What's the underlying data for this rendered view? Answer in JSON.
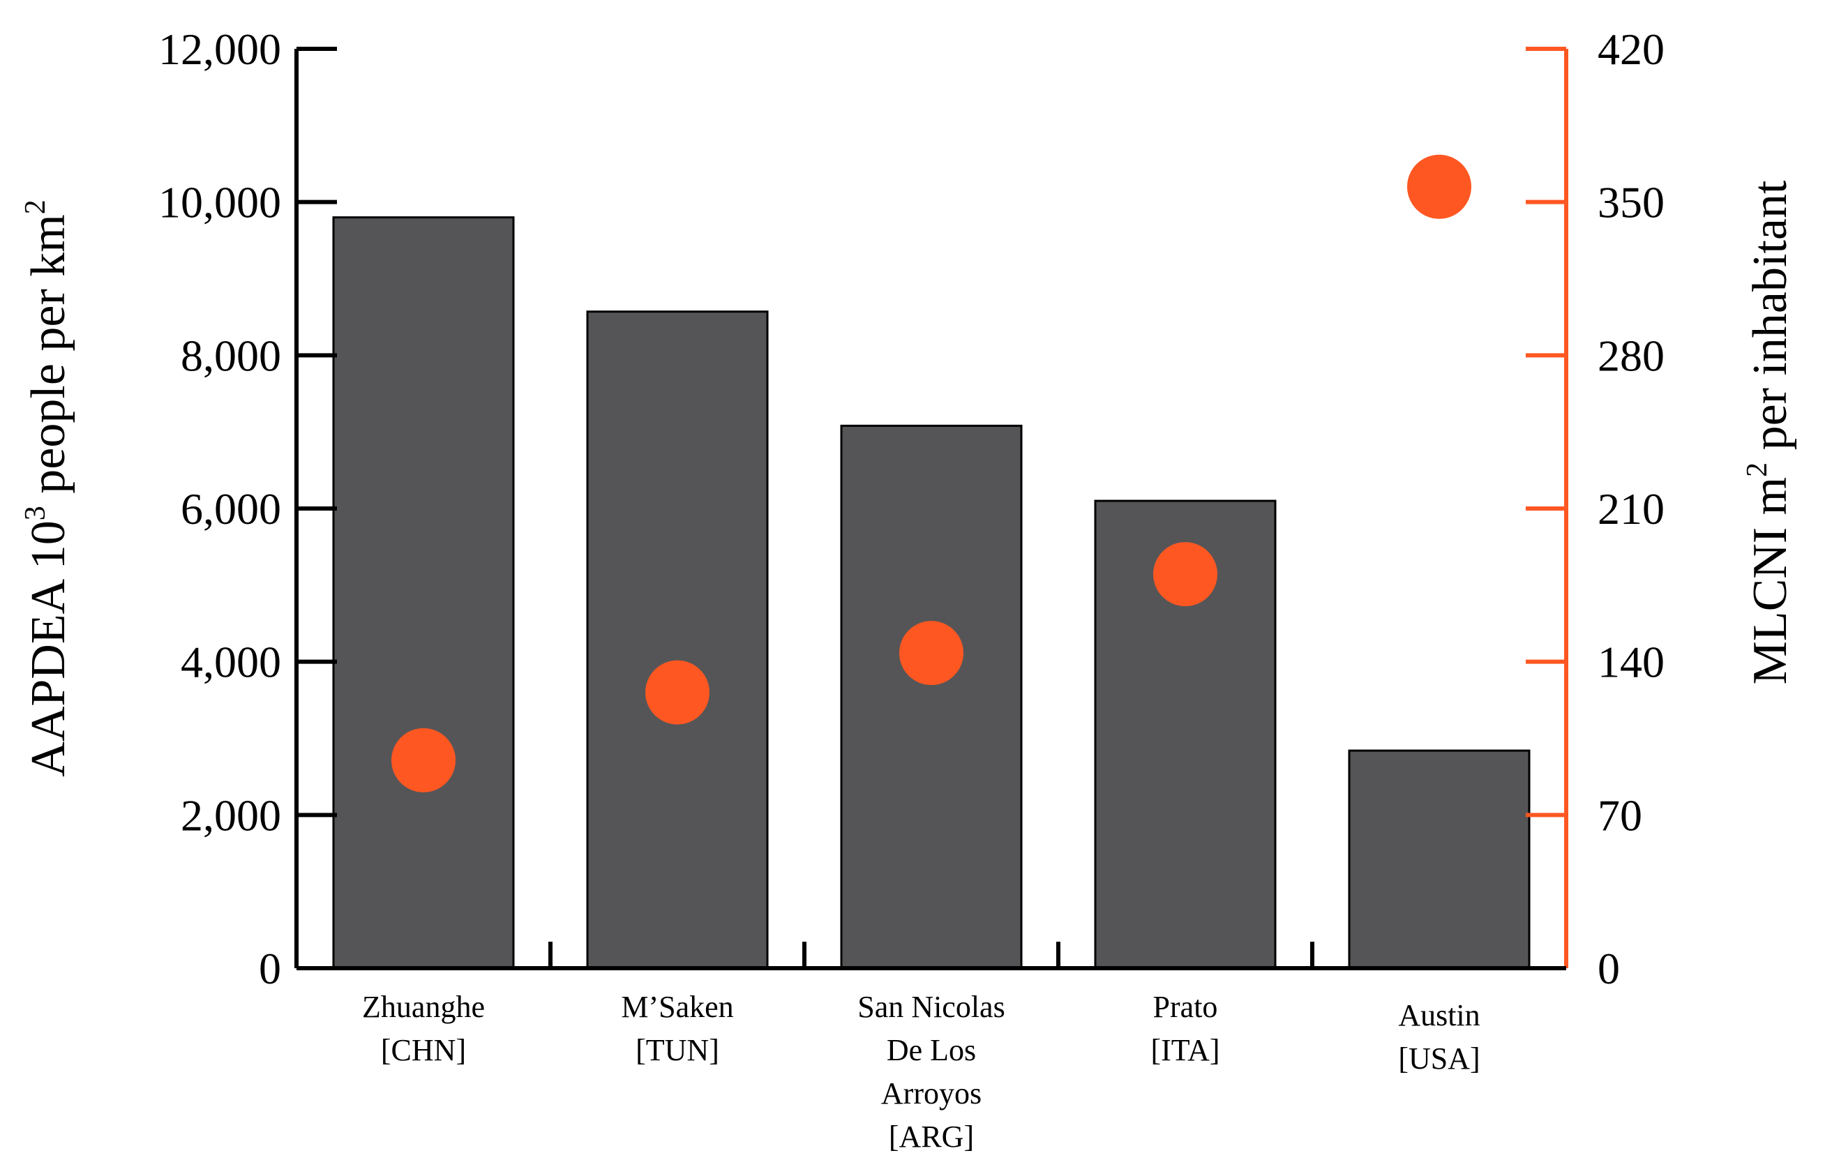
{
  "chart_data": {
    "type": "bar",
    "categories": [
      [
        "Zhuanghe",
        "[CHN]"
      ],
      [
        "M’Saken",
        "[TUN]"
      ],
      [
        "San Nicolas",
        "De Los",
        "Arroyos",
        "[ARG]"
      ],
      [
        "Prato",
        "[ITA]"
      ],
      [
        "Austin",
        "[USA]"
      ]
    ],
    "series": [
      {
        "values": [
          9800,
          8570,
          7080,
          6100,
          2840
        ],
        "axis": "left",
        "mark": "bar",
        "color": "#555557"
      },
      {
        "values": [
          95,
          126,
          144,
          180,
          357
        ],
        "axis": "right",
        "mark": "point",
        "color": "#ff5722"
      }
    ],
    "left_axis": {
      "label_main": "AAPDEA 10",
      "label_sup": "3",
      "label_rest": " people per km",
      "label_sup2": "2",
      "ylim": [
        0,
        12000
      ],
      "ticks": [
        "0",
        "2,000",
        "4,000",
        "6,000",
        "8,000",
        "10,000",
        "12,000"
      ],
      "tick_values": [
        0,
        2000,
        4000,
        6000,
        8000,
        10000,
        12000
      ],
      "color": "#000000"
    },
    "right_axis": {
      "label_main": "MLCNI m",
      "label_sup": "2",
      "label_rest": " per inhabitant",
      "ylim": [
        0,
        420
      ],
      "ticks": [
        "0",
        "70",
        "140",
        "210",
        "280",
        "350",
        "420"
      ],
      "tick_values": [
        0,
        70,
        140,
        210,
        280,
        350,
        420
      ],
      "color": "#ff5722"
    },
    "grid": false,
    "legend": "none"
  }
}
